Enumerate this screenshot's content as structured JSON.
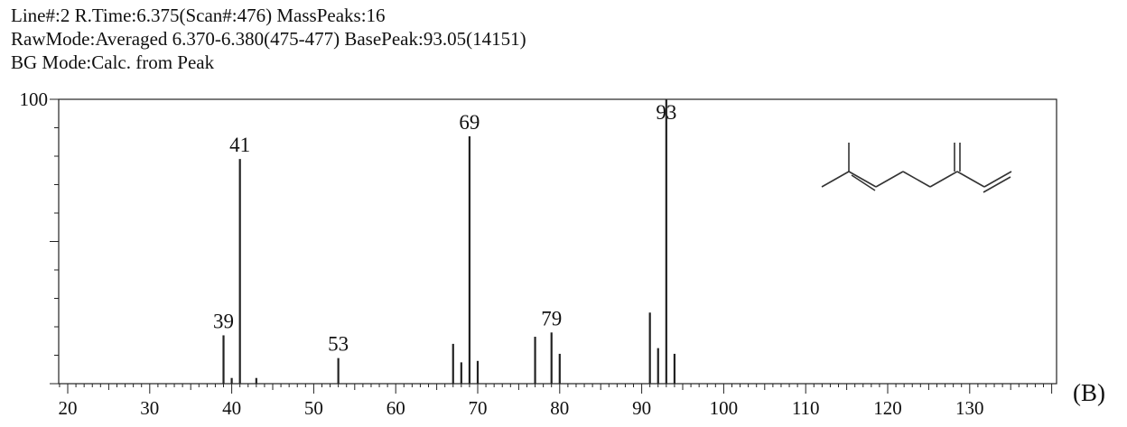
{
  "header": {
    "line1": "Line#:2   R.Time:6.375(Scan#:476)   MassPeaks:16",
    "line2": "RawMode:Averaged 6.370-6.380(475-477) BasePeak:93.05(14151)",
    "line3": "BG Mode:Calc. from Peak"
  },
  "panel_label": "(B)",
  "chart_data": {
    "type": "bar",
    "title": "",
    "xlabel": "",
    "ylabel": "",
    "xlim": [
      18,
      140
    ],
    "ylim": [
      0,
      100
    ],
    "x_ticks": [
      20,
      30,
      40,
      50,
      60,
      70,
      80,
      90,
      100,
      110,
      120,
      130
    ],
    "y_ticks": [
      100
    ],
    "peaks": [
      {
        "mz": 39,
        "intensity": 17,
        "label": "39"
      },
      {
        "mz": 40,
        "intensity": 2
      },
      {
        "mz": 41,
        "intensity": 79,
        "label": "41"
      },
      {
        "mz": 43,
        "intensity": 2
      },
      {
        "mz": 53,
        "intensity": 9,
        "label": "53"
      },
      {
        "mz": 67,
        "intensity": 14
      },
      {
        "mz": 68,
        "intensity": 7.5
      },
      {
        "mz": 69,
        "intensity": 87,
        "label": "69"
      },
      {
        "mz": 70,
        "intensity": 8
      },
      {
        "mz": 77,
        "intensity": 16.5
      },
      {
        "mz": 79,
        "intensity": 18,
        "label": "79"
      },
      {
        "mz": 80,
        "intensity": 10.5
      },
      {
        "mz": 91,
        "intensity": 25
      },
      {
        "mz": 92,
        "intensity": 12.5
      },
      {
        "mz": 93,
        "intensity": 100,
        "label": "93"
      },
      {
        "mz": 94,
        "intensity": 10.5
      }
    ],
    "inset": "myrcene skeletal structure",
    "grid": false
  }
}
